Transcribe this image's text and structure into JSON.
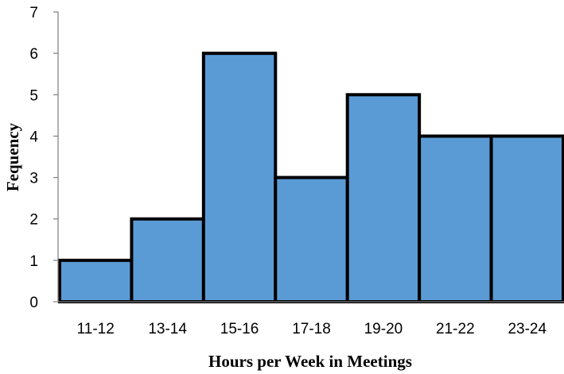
{
  "chart_data": {
    "type": "bar",
    "title": "",
    "xlabel": "Hours per Week in Meetings",
    "ylabel": "Fequency",
    "categories": [
      "11-12",
      "13-14",
      "15-16",
      "17-18",
      "19-20",
      "21-22",
      "23-24"
    ],
    "values": [
      1,
      2,
      6,
      3,
      5,
      4,
      4
    ],
    "ylim": [
      0,
      7
    ],
    "yticks": [
      "0",
      "1",
      "2",
      "3",
      "4",
      "5",
      "6",
      "7"
    ],
    "grid": false,
    "legend": "none",
    "bar_color": "#5b9bd5",
    "bar_edge_color": "#000000"
  }
}
